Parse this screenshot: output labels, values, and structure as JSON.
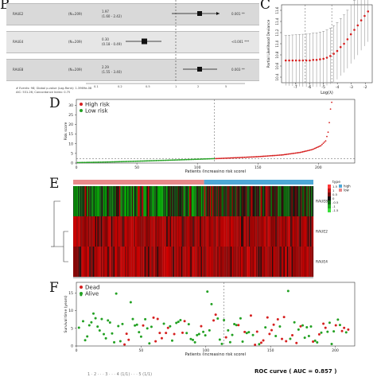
{
  "panel_labels": {
    "b": "B",
    "c": "C",
    "d": "D",
    "e": "E",
    "f": "F"
  },
  "forest": {
    "rows": [
      {
        "gene": "RAUE2",
        "n": "(N=209)",
        "hr": "1.97",
        "ci": "(1.60 - 2.42)",
        "p": "0.001 **"
      },
      {
        "gene": "RAUE4",
        "n": "(N=209)",
        "hr": "0.30",
        "ci": "(0.18 - 0.49)",
        "p": "<0.001 ***"
      },
      {
        "gene": "RAUE8",
        "n": "(N=209)",
        "hr": "2.29",
        "ci": "(1.55 - 3.40)",
        "p": "0.003 **"
      }
    ],
    "axis_ticks": [
      "0.1",
      "0.2",
      "0.5",
      "1",
      "2",
      "5"
    ],
    "footnote1": "# Events: 98; Global p-value (Log-Rank): 1.3969e-08",
    "footnote2": "AIC: 531.26; Concordance Index: 0.75"
  },
  "chart_data": [
    {
      "id": "C",
      "type": "line",
      "xlabel": "Log(λ)",
      "ylabel": "Partial Likelihood Deviance",
      "xlim": [
        -8,
        -1.5
      ],
      "ylim": [
        10.3,
        11.7
      ],
      "x_ticks": [
        -7,
        -6,
        -5,
        -4,
        -3,
        -2
      ],
      "y_ticks": [
        "10.4",
        "10.6",
        "10.8",
        "11.0",
        "11.2",
        "11.4",
        "11.6"
      ],
      "series": [
        {
          "values": [
            10.7,
            10.7,
            10.7,
            10.7,
            10.7,
            10.7,
            10.7,
            10.7,
            10.71,
            10.71,
            10.72,
            10.73,
            10.75,
            10.78,
            10.82,
            10.87,
            10.94,
            11.0,
            11.08,
            11.17,
            11.25,
            11.33,
            11.42,
            11.5,
            11.58
          ]
        }
      ],
      "vlines": [
        -6.3,
        -4.4
      ]
    },
    {
      "id": "D",
      "type": "scatter",
      "xlabel": "Patients (increasing risk score)",
      "ylabel": "Risk score",
      "xlim": [
        0,
        230
      ],
      "ylim": [
        0,
        33
      ],
      "x_ticks": [
        0,
        50,
        100,
        150,
        200
      ],
      "y_ticks": [
        0,
        5,
        10,
        15,
        20,
        25,
        30
      ],
      "cutoff_x": 114,
      "cutoff_y": 2.3,
      "legend": [
        {
          "name": "High risk",
          "color": "#d62020"
        },
        {
          "name": "Low risk",
          "color": "#23a123"
        }
      ],
      "n_low": 114,
      "n_high": 95,
      "low_range": [
        0.25,
        2.3
      ],
      "high_curve": [
        [
          115,
          2.3
        ],
        [
          130,
          2.7
        ],
        [
          150,
          3.3
        ],
        [
          170,
          4.2
        ],
        [
          185,
          5.5
        ],
        [
          195,
          7.0
        ],
        [
          202,
          9.0
        ],
        [
          206,
          11.5
        ],
        [
          208,
          16.0
        ],
        [
          209,
          21.0
        ],
        [
          210,
          28.0
        ],
        [
          211,
          31.5
        ]
      ]
    },
    {
      "id": "E",
      "type": "heatmap",
      "rows": [
        "RAUE8",
        "RAUE2",
        "RAUE4"
      ],
      "groups": [
        {
          "name": "high",
          "color": "#4ea8d6"
        },
        {
          "name": "low",
          "color": "#e8888a"
        }
      ],
      "legend_title": "type",
      "scale": [
        "1.5",
        "1",
        "0.5",
        "0",
        "-0.5",
        "-1",
        "-1.5"
      ],
      "n_cols": 209
    },
    {
      "id": "F",
      "type": "scatter",
      "xlabel": "Patients (increasing risk score)",
      "ylabel": "Survival time (years)",
      "xlim": [
        0,
        215
      ],
      "ylim": [
        0,
        18
      ],
      "x_ticks": [
        0,
        50,
        100,
        150,
        200
      ],
      "y_ticks": [
        0,
        5,
        10,
        15
      ],
      "cutoff_x": 114,
      "legend": [
        {
          "name": "Dead",
          "color": "#d62020"
        },
        {
          "name": "Alive",
          "color": "#23a123"
        }
      ]
    }
  ],
  "roc_caption": "ROC curve ( AUC = 0.857 )",
  "bottom_text": "1 · 2 · · · 3 · · · 4 (1/1) · · · 5 (1/1)"
}
